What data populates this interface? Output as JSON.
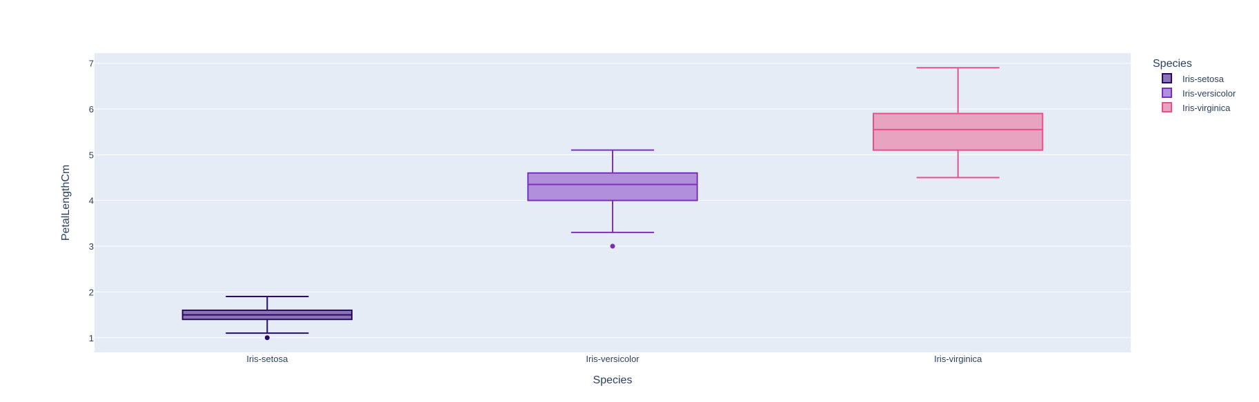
{
  "chart_data": {
    "type": "box",
    "xlabel": "Species",
    "ylabel": "PetalLengthCm",
    "ylim": [
      0.68,
      7.22
    ],
    "yticks": [
      1,
      2,
      3,
      4,
      5,
      6,
      7
    ],
    "categories": [
      "Iris-setosa",
      "Iris-versicolor",
      "Iris-virginica"
    ],
    "grid": true,
    "legend": {
      "title": "Species",
      "placement": "top-right"
    },
    "series": [
      {
        "name": "Iris-setosa",
        "color": "#2a0a5e",
        "fill": "#8a74b8",
        "min": 1.1,
        "q1": 1.4,
        "median": 1.5,
        "q3": 1.6,
        "max": 1.9,
        "outliers": [
          1.0
        ]
      },
      {
        "name": "Iris-versicolor",
        "color": "#7b2fbe",
        "fill": "#b28fdc",
        "min": 3.3,
        "q1": 4.0,
        "median": 4.35,
        "q3": 4.6,
        "max": 5.1,
        "outliers": [
          3.0
        ]
      },
      {
        "name": "Iris-virginica",
        "color": "#e8508c",
        "fill": "#e8a3c0",
        "min": 4.5,
        "q1": 5.1,
        "median": 5.55,
        "q3": 5.9,
        "max": 6.9,
        "outliers": []
      }
    ]
  }
}
